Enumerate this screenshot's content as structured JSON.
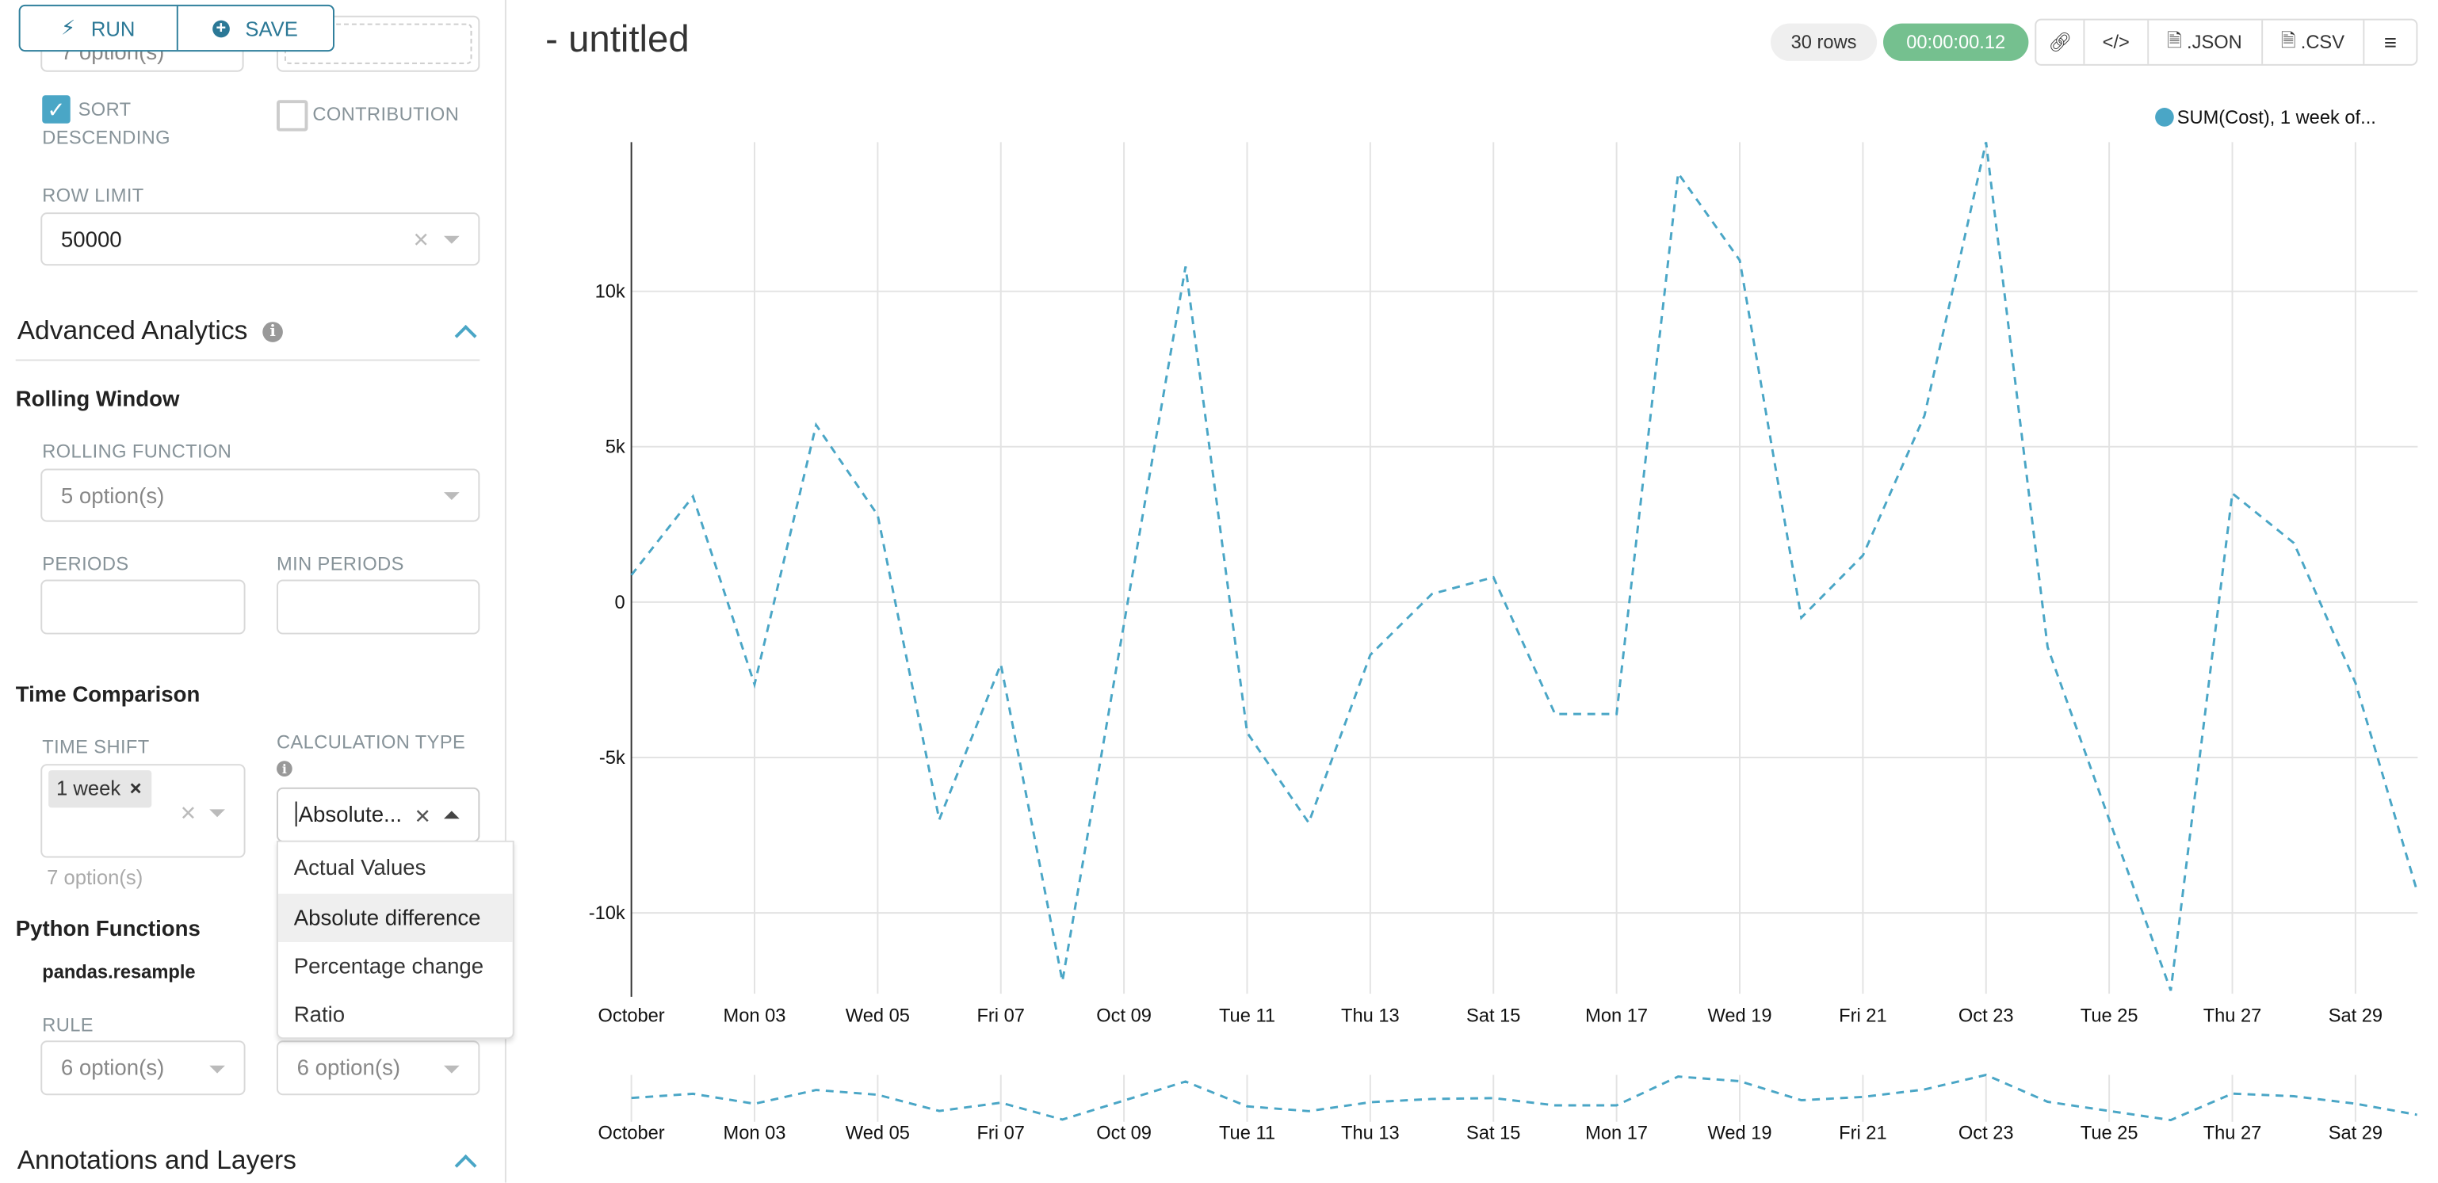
{
  "controls": {
    "run_label": "RUN",
    "save_label": "SAVE",
    "top_left_value": "7 option(s)",
    "sort_descending": {
      "label_line1": "SORT",
      "label_line2": "DESCENDING",
      "checked": true
    },
    "contribution": {
      "label": "CONTRIBUTION",
      "checked": false
    },
    "row_limit": {
      "label": "ROW LIMIT",
      "value": "50000"
    },
    "advanced_analytics": {
      "title": "Advanced Analytics"
    },
    "rolling_window": {
      "title": "Rolling Window",
      "rolling_function_label": "ROLLING FUNCTION",
      "rolling_function_placeholder": "5 option(s)",
      "periods_label": "PERIODS",
      "min_periods_label": "MIN PERIODS"
    },
    "time_comparison": {
      "title": "Time Comparison",
      "time_shift_label": "TIME SHIFT",
      "time_shift_tags": [
        "1 week"
      ],
      "time_shift_options_count": "7 option(s)",
      "calculation_type_label": "CALCULATION TYPE",
      "calculation_type_value": "Absolute...",
      "calculation_options": [
        "Actual Values",
        "Absolute difference",
        "Percentage change",
        "Ratio"
      ],
      "highlighted_option": "Absolute difference"
    },
    "python_functions": {
      "title": "Python Functions",
      "subtitle": "pandas.resample",
      "rule_label": "RULE",
      "rule_placeholder": "6 option(s)",
      "method_placeholder": "6 option(s)"
    },
    "annotations": {
      "title": "Annotations and Layers"
    }
  },
  "header": {
    "title": "- untitled",
    "rows_badge": "30 rows",
    "timer_badge": "00:00:00.12",
    "timer_color": "#75c08f",
    "json_label": ".JSON",
    "csv_label": ".CSV"
  },
  "chart_data": {
    "type": "line",
    "line_style": "dashed",
    "color": "#4aa6c6",
    "legend": {
      "position": "top-right",
      "entries": [
        "SUM(Cost), 1 week of..."
      ]
    },
    "x": [
      "2016-10-01",
      "2016-10-02",
      "2016-10-03",
      "2016-10-04",
      "2016-10-05",
      "2016-10-06",
      "2016-10-07",
      "2016-10-08",
      "2016-10-09",
      "2016-10-10",
      "2016-10-11",
      "2016-10-12",
      "2016-10-13",
      "2016-10-14",
      "2016-10-15",
      "2016-10-16",
      "2016-10-17",
      "2016-10-18",
      "2016-10-19",
      "2016-10-20",
      "2016-10-21",
      "2016-10-22",
      "2016-10-23",
      "2016-10-24",
      "2016-10-25",
      "2016-10-26",
      "2016-10-27",
      "2016-10-28",
      "2016-10-29",
      "2016-10-30"
    ],
    "series": [
      {
        "name": "SUM(Cost), 1 week of...",
        "values": [
          870,
          3400,
          -2650,
          5700,
          2800,
          -7000,
          -2000,
          -12200,
          -700,
          10800,
          -4200,
          -7100,
          -1700,
          260,
          800,
          -3600,
          -3600,
          13800,
          11000,
          -500,
          1500,
          6000,
          14800,
          -1450,
          -7000,
          -12500,
          3500,
          1900,
          -2600,
          -9300
        ]
      }
    ],
    "x_tick_labels": [
      "October",
      "Mon 03",
      "Wed 05",
      "Fri 07",
      "Oct 09",
      "Tue 11",
      "Thu 13",
      "Sat 15",
      "Mon 17",
      "Wed 19",
      "Fri 21",
      "Oct 23",
      "Tue 25",
      "Thu 27",
      "Sat 29"
    ],
    "y_tick_values": [
      -10000,
      -5000,
      0,
      5000,
      10000
    ],
    "y_tick_labels": [
      "-10k",
      "-5k",
      "0",
      "5k",
      "10k"
    ],
    "ylim": [
      -12600,
      14800
    ],
    "grid": true,
    "range_selector": true
  }
}
